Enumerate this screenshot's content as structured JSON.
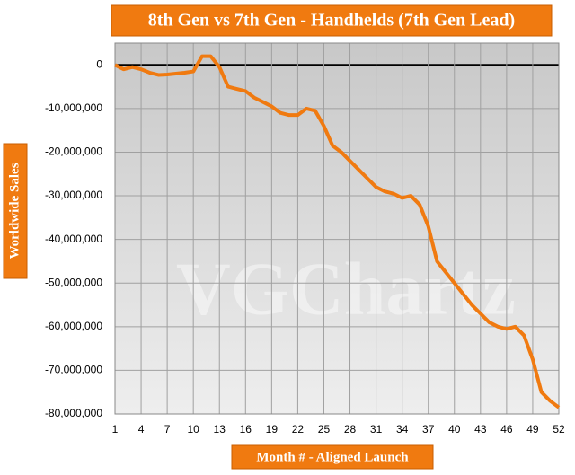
{
  "chart_data": {
    "type": "line",
    "title": "8th Gen vs 7th Gen - Handhelds (7th Gen Lead)",
    "x_label": "Month # - Aligned Launch",
    "y_label": "Worldwide Sales",
    "watermark": "VGChartz",
    "x": [
      1,
      2,
      3,
      4,
      5,
      6,
      7,
      8,
      9,
      10,
      11,
      12,
      13,
      14,
      15,
      16,
      17,
      18,
      19,
      20,
      21,
      22,
      23,
      24,
      25,
      26,
      27,
      28,
      29,
      30,
      31,
      32,
      33,
      34,
      35,
      36,
      37,
      38,
      39,
      40,
      41,
      42,
      43,
      44,
      45,
      46,
      47,
      48,
      49,
      50,
      51,
      52
    ],
    "series": [
      {
        "name": "7th Gen Lead",
        "color": "#f07a10",
        "values": [
          0,
          -1000000,
          -500000,
          -1000000,
          -1800000,
          -2300000,
          -2200000,
          -2000000,
          -1800000,
          -1500000,
          2000000,
          2000000,
          -500000,
          -5000000,
          -5500000,
          -6000000,
          -7500000,
          -8500000,
          -9500000,
          -11000000,
          -11500000,
          -11500000,
          -10000000,
          -10500000,
          -14000000,
          -18500000,
          -20000000,
          -22000000,
          -24000000,
          -26000000,
          -28000000,
          -29000000,
          -29500000,
          -30500000,
          -30000000,
          -32000000,
          -37000000,
          -45000000,
          -47500000,
          -50000000,
          -52500000,
          -55000000,
          -57000000,
          -59000000,
          -60000000,
          -60500000,
          -60000000,
          -62000000,
          -67500000,
          -75000000,
          -77000000,
          -78500000
        ]
      }
    ],
    "xlim": [
      1,
      52
    ],
    "xticks": [
      1,
      4,
      7,
      10,
      13,
      16,
      19,
      22,
      25,
      28,
      31,
      34,
      37,
      40,
      43,
      46,
      49,
      52
    ],
    "ylim": [
      -80000000,
      5000000
    ],
    "yticks": [
      0,
      {
        "value": -10000000,
        "label": "-10,000,000"
      },
      {
        "value": -20000000,
        "label": "-20,000,000"
      },
      {
        "value": -30000000,
        "label": "-30,000,000"
      },
      {
        "value": -40000000,
        "label": "-40,000,000"
      },
      {
        "value": -50000000,
        "label": "-50,000,000"
      },
      {
        "value": -60000000,
        "label": "-60,000,000"
      },
      {
        "value": -70000000,
        "label": "-70,000,000"
      },
      {
        "value": -80000000,
        "label": "-80,000,000"
      }
    ],
    "grid": true
  }
}
